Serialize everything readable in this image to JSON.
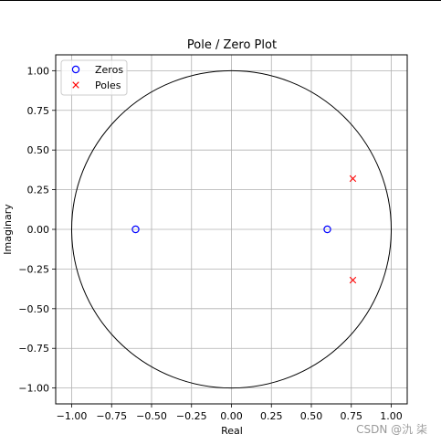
{
  "watermark": "CSDN @氿 柒",
  "chart_data": {
    "type": "scatter",
    "title": "Pole / Zero Plot",
    "xlabel": "Real",
    "ylabel": "Imaginary",
    "xlim": [
      -1.1,
      1.1
    ],
    "ylim": [
      -1.1,
      1.1
    ],
    "x_ticks": [
      -1.0,
      -0.75,
      -0.5,
      -0.25,
      0.0,
      0.25,
      0.5,
      0.75,
      1.0
    ],
    "y_ticks": [
      -1.0,
      -0.75,
      -0.5,
      -0.25,
      0.0,
      0.25,
      0.5,
      0.75,
      1.0
    ],
    "x_tick_labels": [
      "−1.00",
      "−0.75",
      "−0.50",
      "−0.25",
      "0.00",
      "0.25",
      "0.50",
      "0.75",
      "1.00"
    ],
    "y_tick_labels": [
      "−1.00",
      "−0.75",
      "−0.50",
      "−0.25",
      "0.00",
      "0.25",
      "0.50",
      "0.75",
      "1.00"
    ],
    "grid": true,
    "unit_circle": {
      "center": [
        0,
        0
      ],
      "radius": 1.0,
      "color": "#000000"
    },
    "legend_position": "upper-left",
    "series": [
      {
        "name": "Zeros",
        "marker": "circle-open",
        "color": "#0000ff",
        "points": [
          [
            -0.6,
            0.0
          ],
          [
            0.6,
            0.0
          ]
        ]
      },
      {
        "name": "Poles",
        "marker": "x",
        "color": "#ff0000",
        "points": [
          [
            0.76,
            0.32
          ],
          [
            0.76,
            -0.32
          ]
        ]
      }
    ]
  }
}
